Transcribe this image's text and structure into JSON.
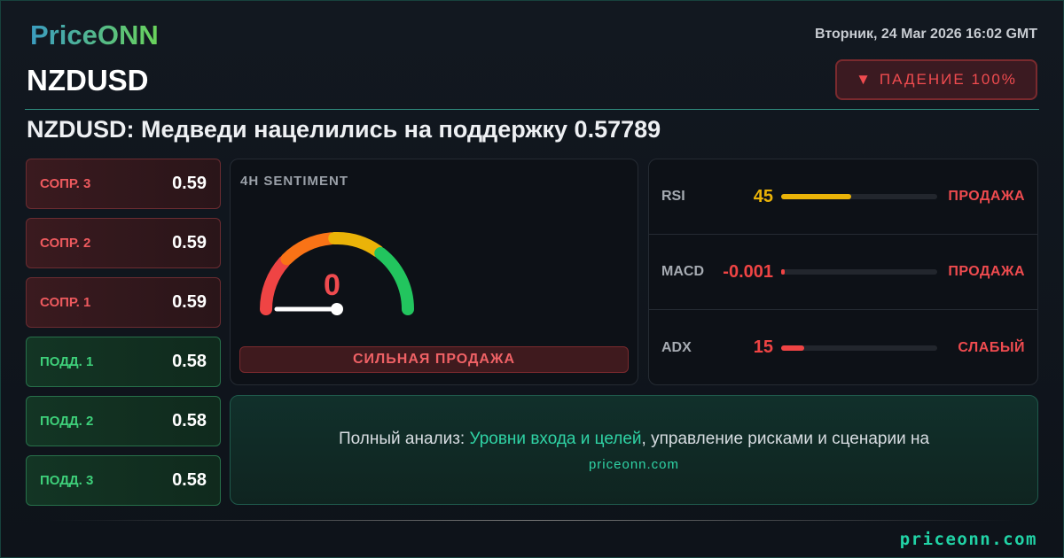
{
  "brand": {
    "logo": "PriceONN",
    "footer_url": "priceonn.com"
  },
  "header": {
    "date": "Вторник, 24 Mar 2026 16:02 GMT",
    "symbol": "NZDUSD",
    "trend_label": "ПАДЕНИЕ 100%",
    "trend_icon": "triangle-down-icon",
    "headline": "NZDUSD: Медведи нацелились на поддержку 0.57789"
  },
  "levels": [
    {
      "label": "СОПР. 3",
      "value": "0.59",
      "type": "resistance"
    },
    {
      "label": "СОПР. 2",
      "value": "0.59",
      "type": "resistance"
    },
    {
      "label": "СОПР. 1",
      "value": "0.59",
      "type": "resistance"
    },
    {
      "label": "ПОДД. 1",
      "value": "0.58",
      "type": "support"
    },
    {
      "label": "ПОДД. 2",
      "value": "0.58",
      "type": "support"
    },
    {
      "label": "ПОДД. 3",
      "value": "0.58",
      "type": "support"
    }
  ],
  "sentiment": {
    "title": "4H SENTIMENT",
    "value": "0",
    "label": "СИЛЬНАЯ ПРОДАЖА",
    "gauge_percent": 0
  },
  "indicators": [
    {
      "name": "RSI",
      "value": "45",
      "fill_percent": 45,
      "color": "#eab308",
      "signal": "ПРОДАЖА"
    },
    {
      "name": "MACD",
      "value": "-0.001",
      "fill_percent": 0.5,
      "color": "#ef4444",
      "signal": "ПРОДАЖА"
    },
    {
      "name": "ADX",
      "value": "15",
      "fill_percent": 15,
      "color": "#ef4444",
      "signal": "СЛАБЫЙ"
    }
  ],
  "cta": {
    "prefix": "Полный анализ: ",
    "highlight": "Уровни входа и целей",
    "suffix": ", управление рисками и сценарии на",
    "url": "priceonn.com"
  },
  "colors": {
    "accent": "#21d3a6",
    "bear": "#ef4b4f",
    "bull": "#3ed07a"
  }
}
